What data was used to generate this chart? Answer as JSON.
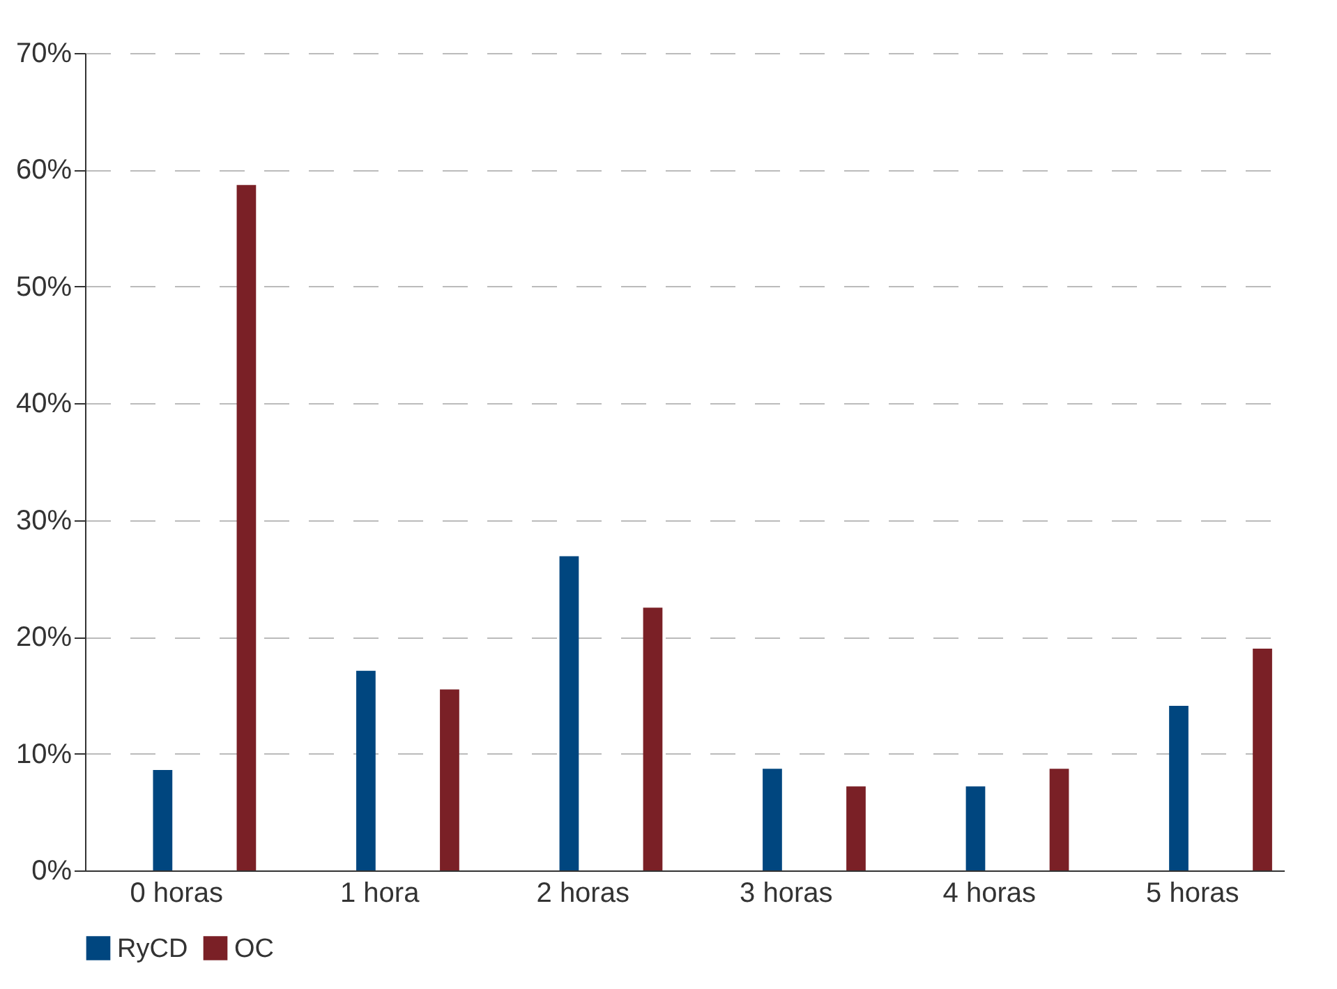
{
  "chart_data": {
    "type": "bar",
    "categories": [
      "0 horas",
      "1 hora",
      "2 horas",
      "3 horas",
      "4 horas",
      "5 horas"
    ],
    "series": [
      {
        "name": "RyCD",
        "color": "#00467f",
        "values": [
          8.6,
          17.1,
          26.9,
          8.7,
          7.2,
          14.1
        ]
      },
      {
        "name": "OC",
        "color": "#7a2026",
        "values": [
          58.7,
          15.5,
          22.5,
          7.2,
          8.7,
          19.0
        ]
      }
    ],
    "ylim": [
      0,
      70
    ],
    "yticks": [
      {
        "value": 0,
        "label": "0%"
      },
      {
        "value": 10,
        "label": "10%"
      },
      {
        "value": 20,
        "label": "20%"
      },
      {
        "value": 30,
        "label": "30%"
      },
      {
        "value": 40,
        "label": "40%"
      },
      {
        "value": 50,
        "label": "50%"
      },
      {
        "value": 60,
        "label": "60%"
      },
      {
        "value": 70,
        "label": "70%"
      }
    ],
    "grid": "y",
    "legend": "bottom"
  }
}
